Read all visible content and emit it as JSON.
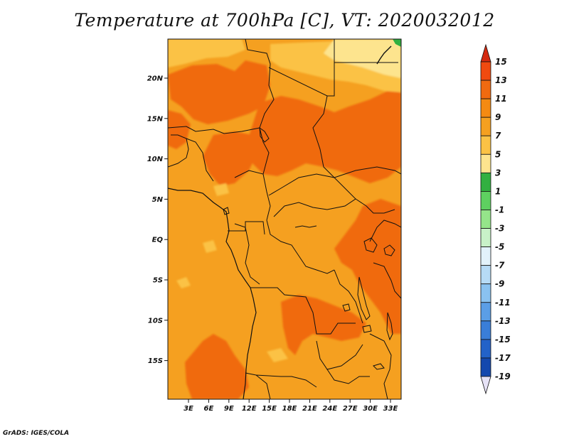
{
  "title": "Temperature at 700hPa [C], VT: 2020032012",
  "footer": "GrADS: IGES/COLA",
  "axes": {
    "lat_ticks": [
      "20N",
      "15N",
      "10N",
      "5N",
      "EQ",
      "5S",
      "10S",
      "15S"
    ],
    "lon_ticks": [
      "3E",
      "6E",
      "9E",
      "12E",
      "15E",
      "18E",
      "21E",
      "24E",
      "27E",
      "30E",
      "33E"
    ]
  },
  "colorbar": {
    "labels": [
      "15",
      "13",
      "11",
      "9",
      "7",
      "5",
      "3",
      "1",
      "-1",
      "-3",
      "-5",
      "-7",
      "-9",
      "-11",
      "-13",
      "-15",
      "-17",
      "-19"
    ],
    "colors": [
      "#d42a10",
      "#f04a10",
      "#f06a10",
      "#f48a12",
      "#f5a020",
      "#fbc245",
      "#fde48e",
      "#32b040",
      "#5ed060",
      "#95e58a",
      "#c8f2c8",
      "#e2f2fb",
      "#b6dbf6",
      "#8ac2f0",
      "#5b9ee6",
      "#3a7ed8",
      "#2362c8",
      "#1448ae",
      "#0a2f8e",
      "#071c5a"
    ],
    "over_color": "#d42a10",
    "under_color": "#e6e2f6"
  },
  "map_colors": {
    "c5": "#fde48e",
    "c7": "#fbc245",
    "c9": "#f5a020",
    "c11": "#f48a12",
    "c13": "#f06a10",
    "c_green": "#32b040"
  }
}
